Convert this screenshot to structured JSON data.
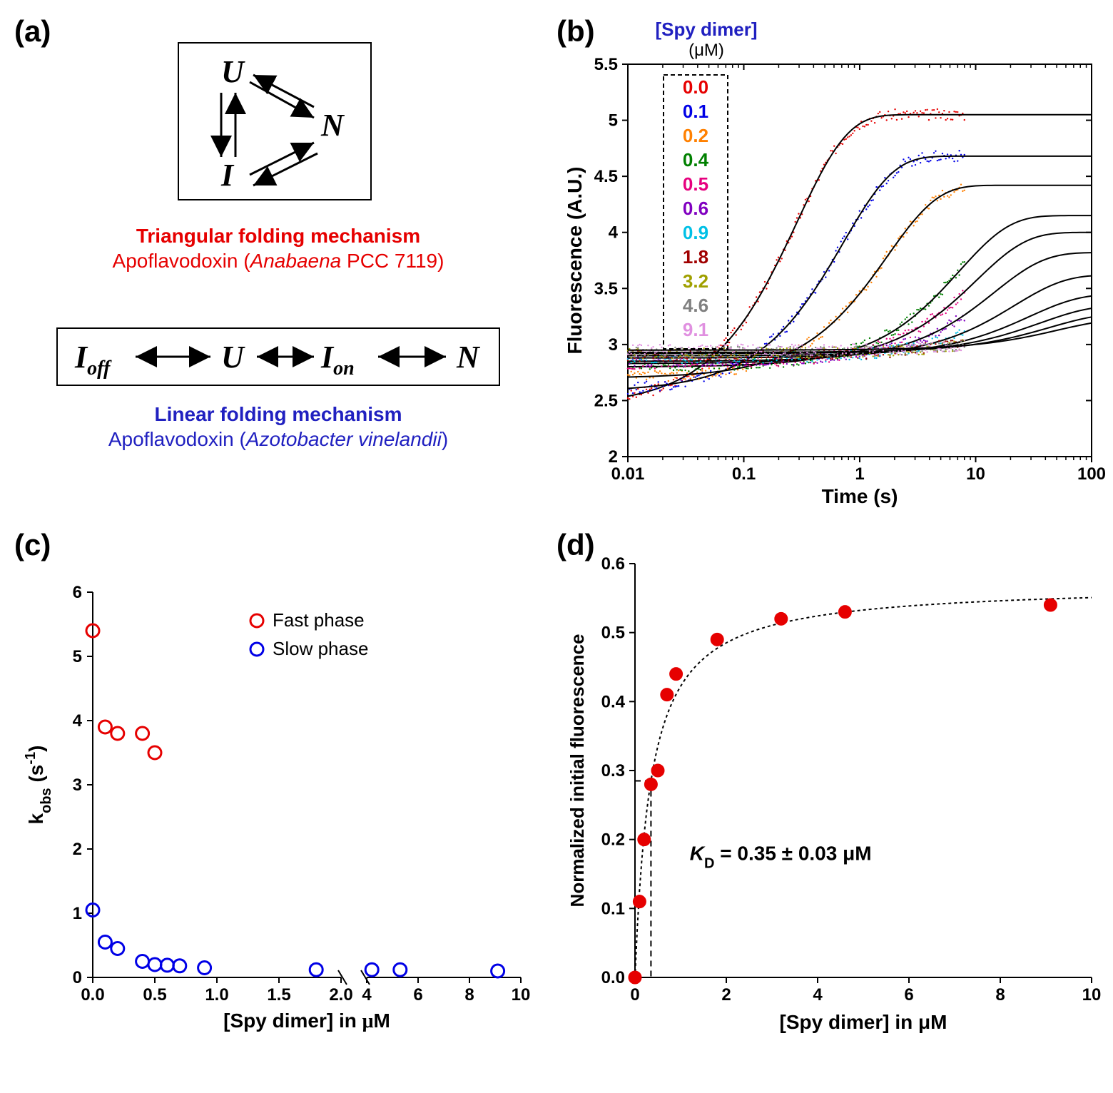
{
  "panels": {
    "a": {
      "label": "(a)",
      "triangular": {
        "nodes": [
          "U",
          "N",
          "I"
        ],
        "title_line1": "Triangular folding mechanism",
        "title_line2": "Apoflavodoxin (Anabaena PCC 7119)",
        "title_color": "#e60000"
      },
      "linear": {
        "sequence": "I_off ↔ U ↔ I_on ↔ N",
        "title_line1": "Linear folding mechanism",
        "title_line2": "Apoflavodoxin (Azotobacter vinelandii)",
        "title_color": "#2020c0"
      }
    },
    "b": {
      "label": "(b)",
      "title": "[Spy dimer]",
      "title_unit": "(μM)",
      "xaxis": {
        "label": "Time (s)",
        "scale": "log",
        "min": 0.01,
        "max": 100,
        "ticks": [
          0.01,
          0.1,
          1,
          10,
          100
        ]
      },
      "yaxis": {
        "label": "Fluorescence (A.U.)",
        "min": 2,
        "max": 5.5,
        "ticks": [
          2,
          2.5,
          3,
          3.5,
          4,
          4.5,
          5,
          5.5
        ]
      },
      "legend": [
        {
          "label": "0.0",
          "color": "#e60000"
        },
        {
          "label": "0.1",
          "color": "#0000e6"
        },
        {
          "label": "0.2",
          "color": "#ff8000"
        },
        {
          "label": "0.4",
          "color": "#008000"
        },
        {
          "label": "0.5",
          "color": "#e6007e"
        },
        {
          "label": "0.6",
          "color": "#8000c0"
        },
        {
          "label": "0.9",
          "color": "#00c0e6"
        },
        {
          "label": "1.8",
          "color": "#a00000"
        },
        {
          "label": "3.2",
          "color": "#a0a000"
        },
        {
          "label": "4.6",
          "color": "#808080"
        },
        {
          "label": "9.1",
          "color": "#e090e0"
        }
      ],
      "curves": [
        {
          "color": "#e60000",
          "y0": 2.45,
          "ymax": 5.05,
          "thalf": 0.2
        },
        {
          "color": "#0000e6",
          "y0": 2.58,
          "ymax": 4.68,
          "thalf": 0.5
        },
        {
          "color": "#ff8000",
          "y0": 2.7,
          "ymax": 4.42,
          "thalf": 1.2
        },
        {
          "color": "#008000",
          "y0": 2.8,
          "ymax": 4.15,
          "thalf": 5
        },
        {
          "color": "#e6007e",
          "y0": 2.83,
          "ymax": 4.0,
          "thalf": 7
        },
        {
          "color": "#8000c0",
          "y0": 2.85,
          "ymax": 3.82,
          "thalf": 10
        },
        {
          "color": "#00c0e6",
          "y0": 2.88,
          "ymax": 3.62,
          "thalf": 15
        },
        {
          "color": "#a00000",
          "y0": 2.9,
          "ymax": 3.45,
          "thalf": 20
        },
        {
          "color": "#a0a000",
          "y0": 2.92,
          "ymax": 3.35,
          "thalf": 25
        },
        {
          "color": "#808080",
          "y0": 2.93,
          "ymax": 3.28,
          "thalf": 30
        },
        {
          "color": "#e090e0",
          "y0": 2.95,
          "ymax": 3.23,
          "thalf": 35
        }
      ],
      "fit_color": "#000000",
      "scatter_end": 8,
      "background": "#ffffff"
    },
    "c": {
      "label": "(c)",
      "xaxis": {
        "label": "[Spy dimer] in μM",
        "break_at": 2.2,
        "seg1": {
          "min": 0,
          "max": 2.0,
          "ticks": [
            0,
            0.5,
            1.0,
            1.5,
            2.0
          ]
        },
        "seg2": {
          "min": 4,
          "max": 10,
          "ticks": [
            4,
            6,
            8,
            10
          ]
        }
      },
      "yaxis": {
        "label": "k_obs (s^-1)",
        "min": 0,
        "max": 6,
        "ticks": [
          0,
          1,
          2,
          3,
          4,
          5,
          6
        ]
      },
      "legend": [
        {
          "label": "Fast phase",
          "color": "#e60000"
        },
        {
          "label": "Slow phase",
          "color": "#0000e6"
        }
      ],
      "fast_points": [
        {
          "x": 0.0,
          "y": 5.4
        },
        {
          "x": 0.1,
          "y": 3.9
        },
        {
          "x": 0.2,
          "y": 3.8
        },
        {
          "x": 0.4,
          "y": 3.8
        },
        {
          "x": 0.5,
          "y": 3.5
        }
      ],
      "slow_points": [
        {
          "x": 0.0,
          "y": 1.05
        },
        {
          "x": 0.1,
          "y": 0.55
        },
        {
          "x": 0.2,
          "y": 0.45
        },
        {
          "x": 0.4,
          "y": 0.25
        },
        {
          "x": 0.5,
          "y": 0.2
        },
        {
          "x": 0.6,
          "y": 0.19
        },
        {
          "x": 0.7,
          "y": 0.18
        },
        {
          "x": 0.9,
          "y": 0.15
        },
        {
          "x": 1.8,
          "y": 0.12
        },
        {
          "x": 4.2,
          "y": 0.12
        },
        {
          "x": 5.3,
          "y": 0.12
        },
        {
          "x": 9.1,
          "y": 0.1
        }
      ],
      "marker_style": "open-circle",
      "marker_radius": 9,
      "marker_stroke": 3
    },
    "d": {
      "label": "(d)",
      "xaxis": {
        "label": "[Spy dimer] in μM",
        "min": 0,
        "max": 10,
        "ticks": [
          0,
          2,
          4,
          6,
          8,
          10
        ]
      },
      "yaxis": {
        "label": "Normalized initial fluorescence",
        "min": 0,
        "max": 0.6,
        "ticks": [
          0,
          0.1,
          0.2,
          0.3,
          0.4,
          0.5,
          0.6
        ]
      },
      "points": [
        {
          "x": 0.0,
          "y": 0.0
        },
        {
          "x": 0.1,
          "y": 0.11
        },
        {
          "x": 0.2,
          "y": 0.2
        },
        {
          "x": 0.35,
          "y": 0.28
        },
        {
          "x": 0.5,
          "y": 0.3
        },
        {
          "x": 0.7,
          "y": 0.41
        },
        {
          "x": 0.9,
          "y": 0.44
        },
        {
          "x": 1.8,
          "y": 0.49
        },
        {
          "x": 3.2,
          "y": 0.52
        },
        {
          "x": 4.6,
          "y": 0.53
        },
        {
          "x": 9.1,
          "y": 0.54
        }
      ],
      "point_color": "#e60000",
      "fit": {
        "ymax": 0.57,
        "kd": 0.35
      },
      "kd_text": "K_D = 0.35 ± 0.03 μM",
      "kd_line": {
        "x": 0.35,
        "y": 0.285
      },
      "marker_radius": 9
    }
  },
  "colors": {
    "axis": "#000000",
    "background": "#ffffff"
  },
  "fonts": {
    "panel_label": 42,
    "axis_title": 28,
    "tick": 24,
    "legend": 24
  }
}
